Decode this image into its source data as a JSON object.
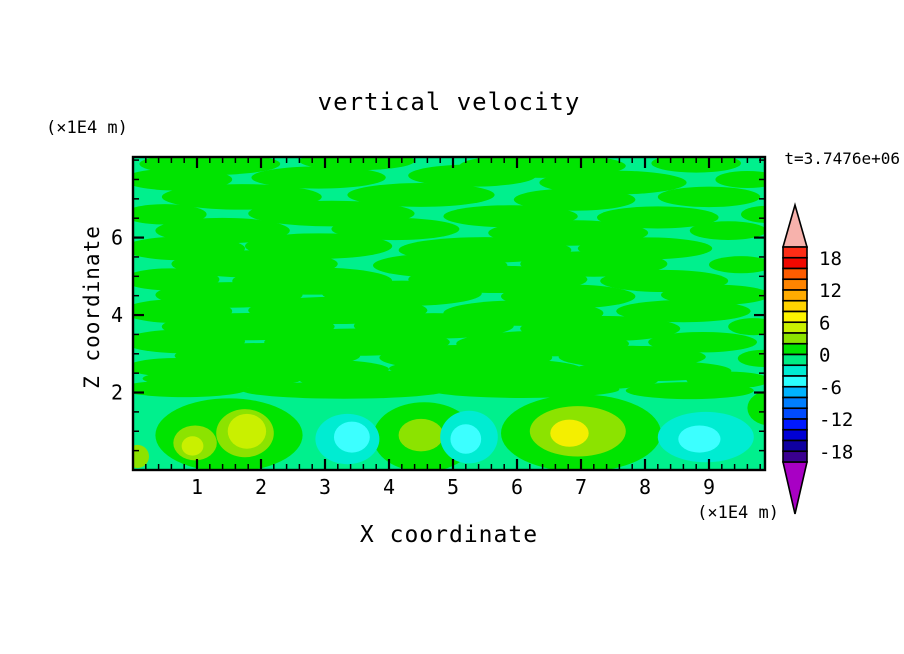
{
  "title": "vertical velocity",
  "time_label": "t=3.7476e+06",
  "axes": {
    "x_label": "X coordinate",
    "x_unit": "(×1E4 m)",
    "z_label": "Z coordinate",
    "z_unit": "(×1E4 m)",
    "x_tick_labels": [
      "1",
      "2",
      "3",
      "4",
      "5",
      "6",
      "7",
      "8",
      "9"
    ],
    "z_tick_labels": [
      "2",
      "4",
      "6"
    ]
  },
  "colorbar": {
    "tick_labels": [
      "18",
      "12",
      "6",
      "0",
      "-6",
      "-12",
      "-18"
    ],
    "box_colors": [
      "#ff2d16",
      "#f10800",
      "#ff5c00",
      "#ff8400",
      "#ffab00",
      "#ffd300",
      "#fdf400",
      "#c9f000",
      "#8ce300",
      "#00e400",
      "#00ed84",
      "#00ecd2",
      "#2cffff",
      "#00b3ff",
      "#007eff",
      "#004bff",
      "#0019ff",
      "#0000d5",
      "#0f00a0",
      "#3a0090"
    ],
    "over_arrow_color": "#f7b2ac",
    "under_arrow_color": "#a800c4",
    "box_value_step": 2,
    "value_range": [
      -20,
      20
    ]
  },
  "chart_data": {
    "type": "heatmap",
    "subtype": "filled-contour",
    "title": "vertical velocity",
    "xlabel": "X coordinate (×1E4 m)",
    "ylabel": "Z coordinate (×1E4 m)",
    "time": "t=3.7476e+06",
    "x_range": [
      0,
      9.875
    ],
    "z_range": [
      0,
      8.08
    ],
    "contour_levels": "every 2 units from -20 to 20; colorbar labels every 6",
    "field_summary": "Field mostly between -2 and +2 (spring-green background = -2..0, green streaks = 0..+2) with horizontally elongated streaks above z=2; a boundary layer below z=2 holds positive cells reaching +6..8 (yellow-green/yellow blobs near x=1, 1.7, 4.5, 6.9) and negative cells reaching -6 (turquoise/cyan blobs near x=3.4, 5.2, 8.9).",
    "field_colors": {
      "bg": "#00f08d",
      "green": "#00e400",
      "ygreen": "#8ce300",
      "chart": "#c9f000",
      "yellow": "#f4ef00",
      "turq": "#00ecd2",
      "cyan": "#3cffff"
    },
    "streaks": [
      [
        1.2,
        7.9,
        1.1,
        0.13
      ],
      [
        3.5,
        7.98,
        0.9,
        0.11
      ],
      [
        6.4,
        7.85,
        1.3,
        0.14
      ],
      [
        8.8,
        7.92,
        0.7,
        0.11
      ],
      [
        0.7,
        7.5,
        0.85,
        0.13
      ],
      [
        2.9,
        7.55,
        1.05,
        0.13
      ],
      [
        5.3,
        7.6,
        1.0,
        0.13
      ],
      [
        7.5,
        7.42,
        1.15,
        0.14
      ],
      [
        9.6,
        7.5,
        0.5,
        0.1
      ],
      [
        1.7,
        7.05,
        1.25,
        0.15
      ],
      [
        4.5,
        7.1,
        1.15,
        0.14
      ],
      [
        6.9,
        6.98,
        0.95,
        0.13
      ],
      [
        9.0,
        7.05,
        0.8,
        0.12
      ],
      [
        0.5,
        6.6,
        0.65,
        0.12
      ],
      [
        3.1,
        6.62,
        1.3,
        0.15
      ],
      [
        5.9,
        6.55,
        1.05,
        0.13
      ],
      [
        8.2,
        6.52,
        0.95,
        0.13
      ],
      [
        9.9,
        6.6,
        0.4,
        0.1
      ],
      [
        1.4,
        6.18,
        1.05,
        0.15
      ],
      [
        4.1,
        6.22,
        1.0,
        0.13
      ],
      [
        6.8,
        6.12,
        1.25,
        0.15
      ],
      [
        9.3,
        6.18,
        0.6,
        0.11
      ],
      [
        0.8,
        5.72,
        0.95,
        0.14
      ],
      [
        2.9,
        5.78,
        1.15,
        0.15
      ],
      [
        5.5,
        5.68,
        1.35,
        0.15
      ],
      [
        8.0,
        5.72,
        1.05,
        0.13
      ],
      [
        1.9,
        5.32,
        1.3,
        0.16
      ],
      [
        4.8,
        5.28,
        1.05,
        0.14
      ],
      [
        7.2,
        5.32,
        1.15,
        0.15
      ],
      [
        9.5,
        5.3,
        0.5,
        0.1
      ],
      [
        0.6,
        4.92,
        0.75,
        0.13
      ],
      [
        2.8,
        4.88,
        1.25,
        0.16
      ],
      [
        5.7,
        4.92,
        1.4,
        0.16
      ],
      [
        8.3,
        4.88,
        1.0,
        0.13
      ],
      [
        1.5,
        4.52,
        1.15,
        0.15
      ],
      [
        4.2,
        4.56,
        1.25,
        0.15
      ],
      [
        6.8,
        4.48,
        1.05,
        0.14
      ],
      [
        9.1,
        4.52,
        0.85,
        0.12
      ],
      [
        0.7,
        4.1,
        0.85,
        0.14
      ],
      [
        3.2,
        4.12,
        1.4,
        0.16
      ],
      [
        6.1,
        4.05,
        1.25,
        0.15
      ],
      [
        8.6,
        4.1,
        1.05,
        0.13
      ],
      [
        1.8,
        3.7,
        1.35,
        0.16
      ],
      [
        4.7,
        3.72,
        1.25,
        0.15
      ],
      [
        7.3,
        3.65,
        1.25,
        0.15
      ],
      [
        9.7,
        3.7,
        0.4,
        0.1
      ],
      [
        0.8,
        3.32,
        0.95,
        0.14
      ],
      [
        3.5,
        3.3,
        1.45,
        0.16
      ],
      [
        6.4,
        3.26,
        1.35,
        0.15
      ],
      [
        8.9,
        3.3,
        0.85,
        0.12
      ],
      [
        2.1,
        2.95,
        1.45,
        0.15
      ],
      [
        5.2,
        2.9,
        1.35,
        0.15
      ],
      [
        7.8,
        2.92,
        1.15,
        0.13
      ],
      [
        9.85,
        2.88,
        0.4,
        0.1
      ],
      [
        0.7,
        2.65,
        0.8,
        0.11
      ],
      [
        2.7,
        2.6,
        1.3,
        0.12
      ],
      [
        5.5,
        2.62,
        1.5,
        0.12
      ],
      [
        8.1,
        2.56,
        1.25,
        0.12
      ],
      [
        1.4,
        2.36,
        1.25,
        0.11
      ],
      [
        4.1,
        2.32,
        1.5,
        0.11
      ],
      [
        6.8,
        2.3,
        1.4,
        0.11
      ],
      [
        9.3,
        2.32,
        0.65,
        0.1
      ],
      [
        0.8,
        2.1,
        1.0,
        0.1
      ],
      [
        3.3,
        2.06,
        1.6,
        0.1
      ],
      [
        6.1,
        2.08,
        1.5,
        0.1
      ],
      [
        8.7,
        2.05,
        1.0,
        0.1
      ]
    ],
    "patches": [
      {
        "c": [
          1.5,
          0.9
        ],
        "r": [
          1.15,
          0.95
        ],
        "col": "green"
      },
      {
        "c": [
          4.55,
          0.85
        ],
        "r": [
          0.8,
          0.9
        ],
        "col": "green"
      },
      {
        "c": [
          7.0,
          0.95
        ],
        "r": [
          1.25,
          1.0
        ],
        "col": "green"
      },
      {
        "c": [
          9.95,
          1.6
        ],
        "r": [
          0.35,
          0.45
        ],
        "col": "green"
      },
      {
        "c": [
          0.97,
          0.7
        ],
        "r": [
          0.34,
          0.45
        ],
        "col": "ygreen"
      },
      {
        "c": [
          0.93,
          0.62
        ],
        "r": [
          0.17,
          0.25
        ],
        "col": "chart"
      },
      {
        "c": [
          1.75,
          0.95
        ],
        "r": [
          0.45,
          0.62
        ],
        "col": "ygreen"
      },
      {
        "c": [
          1.78,
          1.0
        ],
        "r": [
          0.3,
          0.45
        ],
        "col": "chart"
      },
      {
        "c": [
          4.5,
          0.9
        ],
        "r": [
          0.35,
          0.42
        ],
        "col": "ygreen"
      },
      {
        "c": [
          6.95,
          1.0
        ],
        "r": [
          0.75,
          0.65
        ],
        "col": "ygreen"
      },
      {
        "c": [
          6.82,
          0.95
        ],
        "r": [
          0.3,
          0.35
        ],
        "col": "yellow"
      },
      {
        "c": [
          0.07,
          0.35
        ],
        "r": [
          0.18,
          0.3
        ],
        "col": "ygreen"
      },
      {
        "c": [
          3.35,
          0.8
        ],
        "r": [
          0.5,
          0.65
        ],
        "col": "turq"
      },
      {
        "c": [
          3.42,
          0.85
        ],
        "r": [
          0.28,
          0.4
        ],
        "col": "cyan"
      },
      {
        "c": [
          5.25,
          0.85
        ],
        "r": [
          0.45,
          0.68
        ],
        "col": "turq"
      },
      {
        "c": [
          5.2,
          0.8
        ],
        "r": [
          0.24,
          0.38
        ],
        "col": "cyan"
      },
      {
        "c": [
          8.95,
          0.85
        ],
        "r": [
          0.75,
          0.65
        ],
        "col": "turq"
      },
      {
        "c": [
          8.85,
          0.8
        ],
        "r": [
          0.33,
          0.35
        ],
        "col": "cyan"
      }
    ]
  }
}
